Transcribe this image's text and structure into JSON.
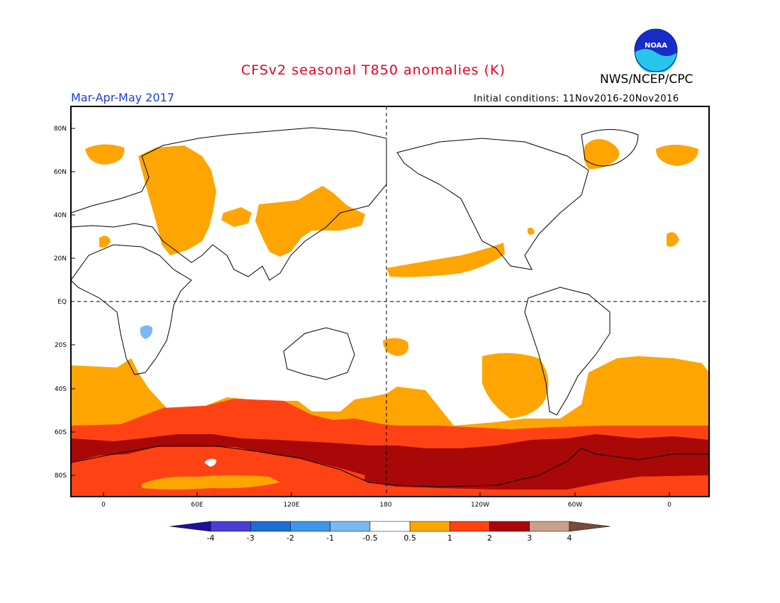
{
  "header": {
    "title": "CFSv2 seasonal T850 anomalies (K)",
    "season": "Mar-Apr-May 2017",
    "initial_conditions": "Initial conditions: 11Nov2016-20Nov2016",
    "agency": "NWS/NCEP/CPC",
    "logo_text": "NOAA"
  },
  "map": {
    "lat_ticks": [
      "80N",
      "60N",
      "40N",
      "20N",
      "EQ",
      "20S",
      "40S",
      "60S",
      "80S"
    ],
    "lon_ticks": [
      "0",
      "60E",
      "120E",
      "180",
      "120W",
      "60W",
      "0"
    ]
  },
  "colorbar": {
    "labels": [
      "-4",
      "-3",
      "-2",
      "-1",
      "-0.5",
      "0.5",
      "1",
      "2",
      "3",
      "4"
    ],
    "colors": [
      "#1e0f9e",
      "#4b3ed3",
      "#1f6cd6",
      "#3e96ea",
      "#7cb8f2",
      "#ffffff",
      "#ffa502",
      "#ff4213",
      "#a80808",
      "#c9a08c",
      "#7a4a3a"
    ]
  },
  "colors": {
    "anom_05_1": "#ffa502",
    "anom_1_2": "#ff4213",
    "anom_2_3": "#a80808",
    "anom_neg_05_1": "#7cb8f2"
  }
}
